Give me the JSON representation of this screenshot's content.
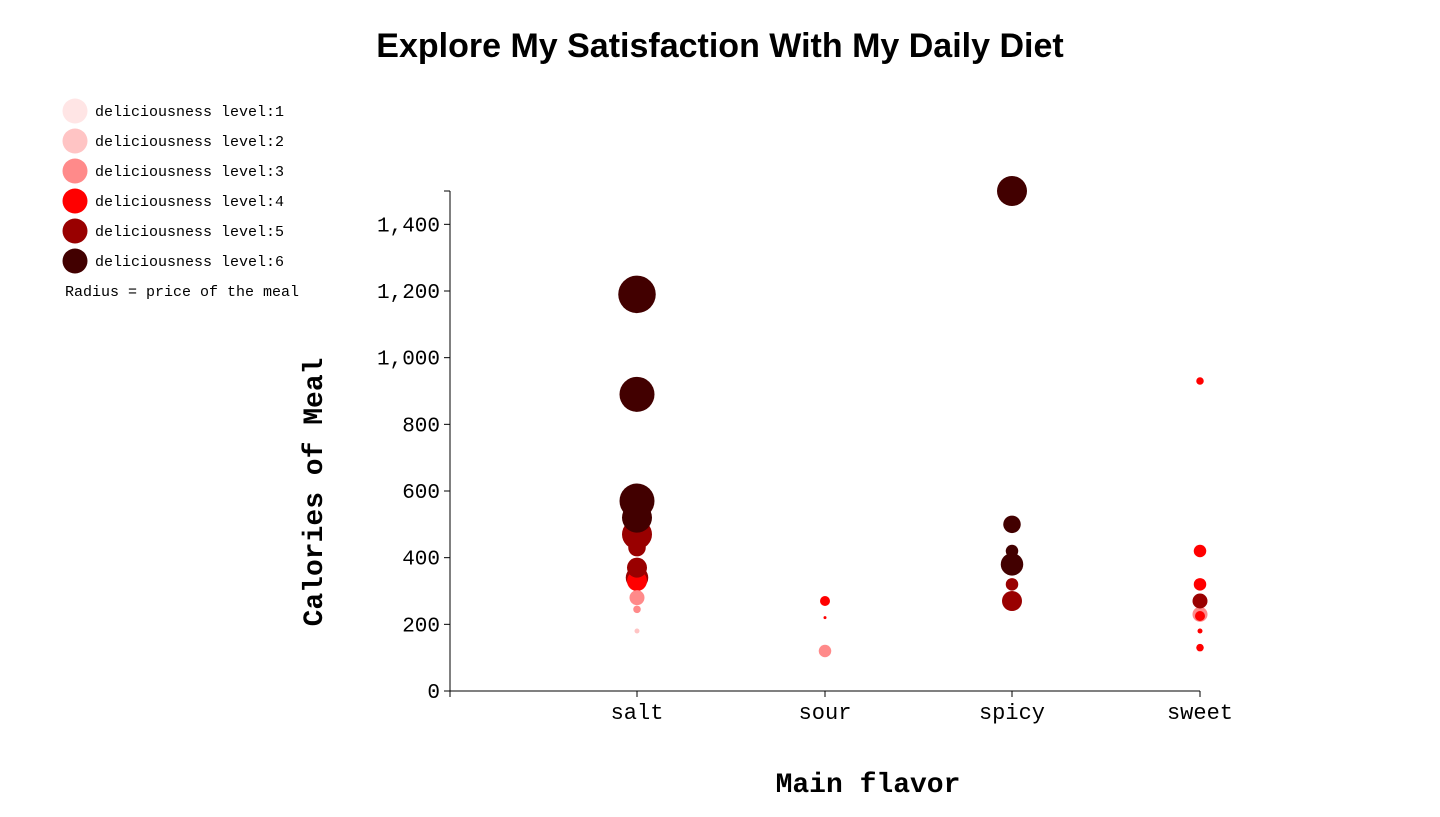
{
  "chart_data": {
    "type": "scatter",
    "title": "Explore My Satisfaction With My Daily Diet",
    "xlabel": "Main flavor",
    "ylabel": "Calories of Meal",
    "categories": [
      "salt",
      "sour",
      "spicy",
      "sweet"
    ],
    "ylim": [
      0,
      1500
    ],
    "yticks": [
      0,
      200,
      400,
      600,
      800,
      1000,
      1200,
      1400
    ],
    "ytick_labels": [
      "0",
      "200",
      "400",
      "600",
      "800",
      "1,000",
      "1,200",
      "1,400"
    ],
    "grid": false,
    "legend": {
      "placement": "top-left",
      "entries": [
        {
          "label": "deliciousness level:1",
          "level": 1,
          "color": "#ffe5e5"
        },
        {
          "label": "deliciousness level:2",
          "level": 2,
          "color": "#ffc4c4"
        },
        {
          "label": "deliciousness level:3",
          "level": 3,
          "color": "#ff8a8a"
        },
        {
          "label": "deliciousness level:4",
          "level": 4,
          "color": "#ff0000"
        },
        {
          "label": "deliciousness level:5",
          "level": 5,
          "color": "#990000"
        },
        {
          "label": "deliciousness level:6",
          "level": 6,
          "color": "#420000"
        }
      ],
      "note": "Radius = price of the meal"
    },
    "points": [
      {
        "flavor": "salt",
        "calories": 180,
        "level": 2,
        "price": 2
      },
      {
        "flavor": "salt",
        "calories": 245,
        "level": 3,
        "price": 3
      },
      {
        "flavor": "salt",
        "calories": 280,
        "level": 3,
        "price": 6
      },
      {
        "flavor": "salt",
        "calories": 330,
        "level": 4,
        "price": 8
      },
      {
        "flavor": "salt",
        "calories": 340,
        "level": 5,
        "price": 9
      },
      {
        "flavor": "salt",
        "calories": 370,
        "level": 5,
        "price": 8
      },
      {
        "flavor": "salt",
        "calories": 430,
        "level": 5,
        "price": 7
      },
      {
        "flavor": "salt",
        "calories": 470,
        "level": 5,
        "price": 12
      },
      {
        "flavor": "salt",
        "calories": 520,
        "level": 6,
        "price": 12
      },
      {
        "flavor": "salt",
        "calories": 570,
        "level": 6,
        "price": 14
      },
      {
        "flavor": "salt",
        "calories": 890,
        "level": 6,
        "price": 14
      },
      {
        "flavor": "salt",
        "calories": 1190,
        "level": 6,
        "price": 15
      },
      {
        "flavor": "sour",
        "calories": 120,
        "level": 3,
        "price": 5
      },
      {
        "flavor": "sour",
        "calories": 220,
        "level": 4,
        "price": 1
      },
      {
        "flavor": "sour",
        "calories": 270,
        "level": 4,
        "price": 4
      },
      {
        "flavor": "spicy",
        "calories": 270,
        "level": 5,
        "price": 8
      },
      {
        "flavor": "spicy",
        "calories": 320,
        "level": 5,
        "price": 5
      },
      {
        "flavor": "spicy",
        "calories": 380,
        "level": 6,
        "price": 9
      },
      {
        "flavor": "spicy",
        "calories": 420,
        "level": 6,
        "price": 5
      },
      {
        "flavor": "spicy",
        "calories": 500,
        "level": 6,
        "price": 7
      },
      {
        "flavor": "spicy",
        "calories": 1500,
        "level": 6,
        "price": 12
      },
      {
        "flavor": "sweet",
        "calories": 130,
        "level": 4,
        "price": 3
      },
      {
        "flavor": "sweet",
        "calories": 180,
        "level": 4,
        "price": 2
      },
      {
        "flavor": "sweet",
        "calories": 225,
        "level": 4,
        "price": 4
      },
      {
        "flavor": "sweet",
        "calories": 230,
        "level": 3,
        "price": 6
      },
      {
        "flavor": "sweet",
        "calories": 270,
        "level": 5,
        "price": 6
      },
      {
        "flavor": "sweet",
        "calories": 320,
        "level": 4,
        "price": 5
      },
      {
        "flavor": "sweet",
        "calories": 420,
        "level": 4,
        "price": 5
      },
      {
        "flavor": "sweet",
        "calories": 930,
        "level": 4,
        "price": 3
      }
    ]
  }
}
